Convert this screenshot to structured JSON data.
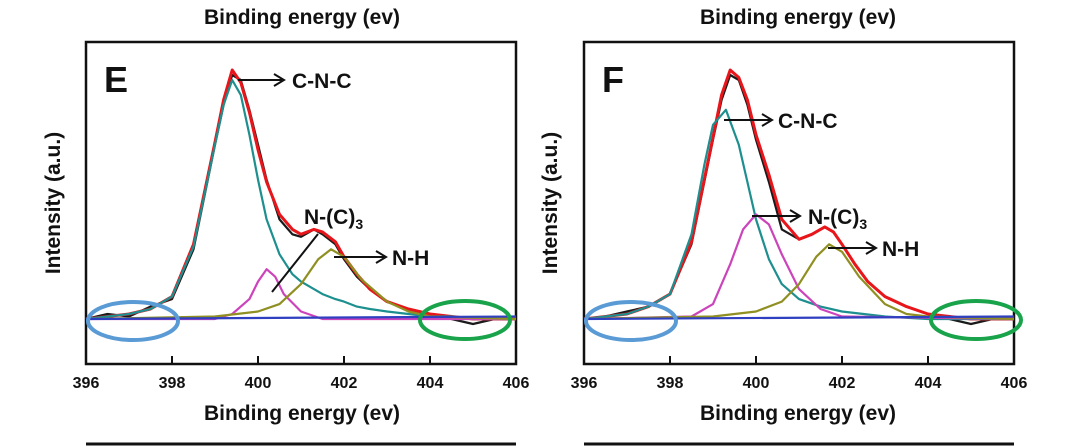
{
  "chart_data": [
    {
      "type": "line",
      "panel_label": "E",
      "top_label": "Binding energy (ev)",
      "xlabel": "Binding energy (ev)",
      "ylabel": "Intensity (a.u.)",
      "xlim": [
        396,
        406
      ],
      "ylim": [
        0,
        1.05
      ],
      "xticks": [
        "396",
        "398",
        "400",
        "402",
        "404",
        "406"
      ],
      "series": [
        {
          "color": "#1a1a1a",
          "x": [
            396,
            396.5,
            397,
            397.5,
            398,
            398.5,
            399,
            399.2,
            399.4,
            399.6,
            399.8,
            400,
            400.2,
            400.5,
            400.8,
            401,
            401.3,
            401.5,
            401.8,
            402,
            402.3,
            402.6,
            403,
            403.5,
            404,
            404.5,
            405,
            405.5,
            406
          ],
          "y": [
            0.0,
            0.02,
            0.01,
            0.05,
            0.08,
            0.28,
            0.7,
            0.86,
            0.98,
            0.96,
            0.84,
            0.7,
            0.56,
            0.4,
            0.34,
            0.33,
            0.36,
            0.34,
            0.3,
            0.24,
            0.17,
            0.12,
            0.07,
            0.04,
            0.02,
            0.0,
            -0.02,
            0.0,
            0.01
          ]
        },
        {
          "color": "#e8151b",
          "x": [
            396,
            396.5,
            397,
            397.5,
            398,
            398.5,
            399,
            399.2,
            399.4,
            399.6,
            399.8,
            400,
            400.2,
            400.5,
            400.8,
            401,
            401.3,
            401.5,
            401.8,
            402,
            402.3,
            402.6,
            403,
            403.5,
            404,
            404.5,
            405,
            405.5,
            406
          ],
          "y": [
            0.0,
            0.01,
            0.02,
            0.04,
            0.09,
            0.3,
            0.71,
            0.88,
            1.0,
            0.95,
            0.83,
            0.68,
            0.55,
            0.42,
            0.36,
            0.34,
            0.36,
            0.35,
            0.31,
            0.25,
            0.18,
            0.12,
            0.07,
            0.04,
            0.02,
            0.01,
            0.0,
            0.0,
            0.0
          ]
        },
        {
          "color": "#1e8f8f",
          "x": [
            396,
            396.5,
            397,
            397.5,
            398,
            398.5,
            399,
            399.2,
            399.4,
            399.6,
            399.8,
            400,
            400.2,
            400.5,
            400.8,
            401,
            401.3,
            401.5,
            401.8,
            402,
            402.3,
            402.6,
            403,
            403.5,
            404,
            404.5,
            405,
            405.5,
            406
          ],
          "y": [
            0.0,
            0.01,
            0.02,
            0.04,
            0.09,
            0.29,
            0.7,
            0.86,
            0.96,
            0.9,
            0.74,
            0.56,
            0.4,
            0.26,
            0.18,
            0.15,
            0.12,
            0.1,
            0.08,
            0.07,
            0.05,
            0.04,
            0.03,
            0.02,
            0.01,
            0.01,
            0.0,
            0.0,
            0.0
          ]
        },
        {
          "color": "#cc44bb",
          "x": [
            396,
            399,
            399.4,
            399.8,
            400,
            400.2,
            400.4,
            400.6,
            401,
            401.5,
            406
          ],
          "y": [
            0.0,
            0.0,
            0.02,
            0.08,
            0.15,
            0.2,
            0.17,
            0.1,
            0.03,
            0.0,
            0.0
          ]
        },
        {
          "color": "#8f8f22",
          "x": [
            396,
            399,
            400,
            400.5,
            401,
            401.4,
            401.7,
            402,
            402.4,
            403,
            403.5,
            404,
            406
          ],
          "y": [
            0.0,
            0.01,
            0.03,
            0.06,
            0.14,
            0.24,
            0.28,
            0.25,
            0.16,
            0.07,
            0.03,
            0.01,
            0.0
          ]
        },
        {
          "color": "#2e3fc0",
          "x": [
            396,
            406
          ],
          "y": [
            0.0,
            0.01
          ]
        }
      ],
      "annotations": [
        "C-N-C",
        "N-(C)3",
        "N-H"
      ]
    },
    {
      "type": "line",
      "panel_label": "F",
      "top_label": "Binding energy (ev)",
      "xlabel": "Binding energy (ev)",
      "ylabel": "Intensity (a.u.)",
      "xlim": [
        396,
        406
      ],
      "ylim": [
        0,
        1.05
      ],
      "xticks": [
        "396",
        "398",
        "400",
        "402",
        "404",
        "406"
      ],
      "series": [
        {
          "color": "#1a1a1a",
          "x": [
            396,
            396.5,
            397,
            397.5,
            398,
            398.5,
            399,
            399.2,
            399.4,
            399.6,
            399.8,
            400,
            400.3,
            400.6,
            401,
            401.3,
            401.6,
            401.8,
            402,
            402.3,
            402.6,
            403,
            403.5,
            404,
            404.5,
            405,
            405.5,
            406
          ],
          "y": [
            0.0,
            0.01,
            0.03,
            0.05,
            0.1,
            0.3,
            0.72,
            0.88,
            0.98,
            0.96,
            0.86,
            0.72,
            0.55,
            0.36,
            0.32,
            0.34,
            0.37,
            0.35,
            0.3,
            0.22,
            0.15,
            0.09,
            0.05,
            0.02,
            0.0,
            -0.02,
            0.0,
            0.01
          ]
        },
        {
          "color": "#e8151b",
          "x": [
            396,
            396.5,
            397,
            397.5,
            398,
            398.5,
            399,
            399.2,
            399.4,
            399.6,
            399.8,
            400,
            400.3,
            400.6,
            401,
            401.3,
            401.6,
            401.8,
            402,
            402.3,
            402.6,
            403,
            403.5,
            404,
            404.5,
            405,
            405.5,
            406
          ],
          "y": [
            0.0,
            0.01,
            0.02,
            0.05,
            0.1,
            0.31,
            0.73,
            0.9,
            1.0,
            0.97,
            0.88,
            0.74,
            0.58,
            0.4,
            0.32,
            0.34,
            0.37,
            0.35,
            0.3,
            0.22,
            0.15,
            0.09,
            0.05,
            0.02,
            0.01,
            0.0,
            0.0,
            0.0
          ]
        },
        {
          "color": "#1e8f8f",
          "x": [
            396,
            396.5,
            397,
            397.5,
            398,
            398.5,
            398.8,
            399,
            399.3,
            399.6,
            399.8,
            400,
            400.3,
            400.6,
            401,
            401.5,
            402,
            402.5,
            403,
            404,
            406
          ],
          "y": [
            0.0,
            0.01,
            0.02,
            0.05,
            0.1,
            0.34,
            0.62,
            0.78,
            0.84,
            0.7,
            0.55,
            0.4,
            0.24,
            0.14,
            0.08,
            0.05,
            0.03,
            0.02,
            0.01,
            0.0,
            0.0
          ]
        },
        {
          "color": "#cc44bb",
          "x": [
            396,
            398.5,
            399,
            399.4,
            399.7,
            400,
            400.3,
            400.6,
            401,
            401.5,
            402,
            406
          ],
          "y": [
            0.0,
            0.01,
            0.06,
            0.22,
            0.36,
            0.42,
            0.38,
            0.26,
            0.12,
            0.04,
            0.01,
            0.0
          ]
        },
        {
          "color": "#8f8f22",
          "x": [
            396,
            399,
            400,
            400.6,
            401,
            401.4,
            401.7,
            402,
            402.4,
            403,
            403.5,
            404,
            406
          ],
          "y": [
            0.0,
            0.01,
            0.03,
            0.07,
            0.14,
            0.25,
            0.3,
            0.27,
            0.17,
            0.06,
            0.02,
            0.01,
            0.0
          ]
        },
        {
          "color": "#2e3fc0",
          "x": [
            396,
            406
          ],
          "y": [
            0.0,
            0.01
          ]
        }
      ],
      "annotations": [
        "C-N-C",
        "N-(C)3",
        "N-H"
      ]
    }
  ],
  "highlight_colors": {
    "left_ellipse": "#5b9bd5",
    "right_ellipse": "#19a34a"
  }
}
